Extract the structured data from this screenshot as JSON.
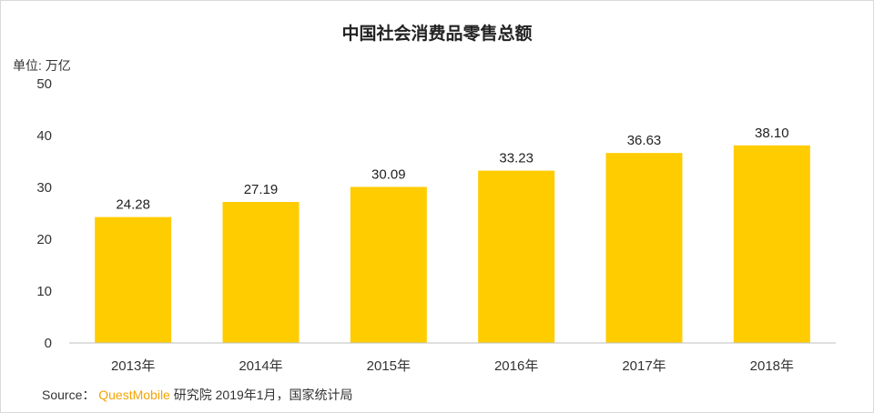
{
  "chart_data": {
    "type": "bar",
    "title": "中国社会消费品零售总额",
    "ylabel": "单位: 万亿",
    "xlabel": "",
    "categories": [
      "2013年",
      "2014年",
      "2015年",
      "2016年",
      "2017年",
      "2018年"
    ],
    "values": [
      24.28,
      27.19,
      30.09,
      33.23,
      36.63,
      38.1
    ],
    "value_labels": [
      "24.28",
      "27.19",
      "30.09",
      "33.23",
      "36.63",
      "38.10"
    ],
    "ylim": [
      0,
      50
    ],
    "yticks": [
      "0",
      "10",
      "20",
      "30",
      "40",
      "50"
    ],
    "grid": false,
    "legend": "none",
    "bar_color": "#ffcc00"
  },
  "source": {
    "label": "Source：",
    "brand": "QuestMobile",
    "rest": "研究院 2019年1月，国家统计局"
  }
}
